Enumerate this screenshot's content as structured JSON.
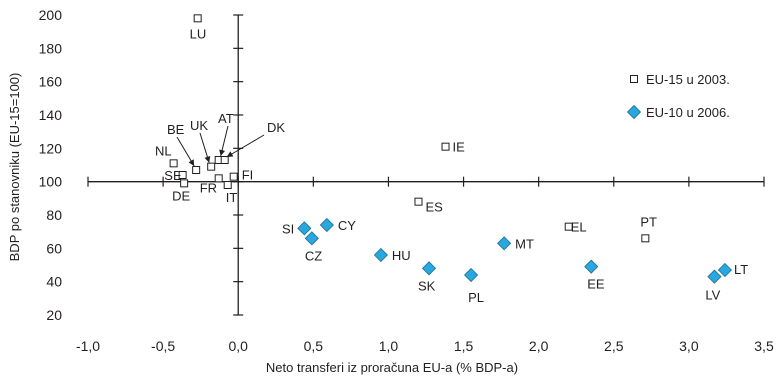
{
  "chart_data": {
    "type": "scatter",
    "xlabel": "Neto transferi iz proračuna EU-a (% BDP-a)",
    "ylabel": "BDP po stanovniku (EU-15=100)",
    "xlim": [
      -1.0,
      3.5
    ],
    "ylim": [
      20,
      200
    ],
    "x_ticks": [
      "-1,0",
      "-0,5",
      "0,0",
      "0,5",
      "1,0",
      "1,5",
      "2,0",
      "2,5",
      "3,0",
      "3,5"
    ],
    "y_ticks": [
      "20",
      "40",
      "60",
      "80",
      "100",
      "120",
      "140",
      "160",
      "180",
      "200"
    ],
    "x_tick_values": [
      -1.0,
      -0.5,
      0.0,
      0.5,
      1.0,
      1.5,
      2.0,
      2.5,
      3.0,
      3.5
    ],
    "y_tick_values": [
      20,
      40,
      60,
      80,
      100,
      120,
      140,
      160,
      180,
      200
    ],
    "axes_cross_at": {
      "x": 0.0,
      "y": 100
    },
    "grid": false,
    "legend_position": "right",
    "series": [
      {
        "name": "EU-15 u 2003.",
        "marker": "square-open",
        "color": "#231f20",
        "points": [
          {
            "label": "LU",
            "x": -0.27,
            "y": 198
          },
          {
            "label": "IE",
            "x": 1.38,
            "y": 121
          },
          {
            "label": "BE",
            "x": -0.28,
            "y": 107
          },
          {
            "label": "UK",
            "x": -0.18,
            "y": 109
          },
          {
            "label": "AT",
            "x": -0.13,
            "y": 113
          },
          {
            "label": "DK",
            "x": -0.09,
            "y": 113
          },
          {
            "label": "NL",
            "x": -0.43,
            "y": 111
          },
          {
            "label": "SE",
            "x": -0.37,
            "y": 104
          },
          {
            "label": "DE",
            "x": -0.36,
            "y": 99
          },
          {
            "label": "FR",
            "x": -0.13,
            "y": 102
          },
          {
            "label": "IT",
            "x": -0.07,
            "y": 98
          },
          {
            "label": "FI",
            "x": -0.03,
            "y": 103
          },
          {
            "label": "ES",
            "x": 1.2,
            "y": 88
          },
          {
            "label": "EL",
            "x": 2.2,
            "y": 73
          },
          {
            "label": "PT",
            "x": 2.71,
            "y": 66
          }
        ]
      },
      {
        "name": "EU-10 u 2006.",
        "marker": "diamond-filled",
        "color": "#29a8df",
        "points": [
          {
            "label": "SI",
            "x": 0.44,
            "y": 72
          },
          {
            "label": "CY",
            "x": 0.59,
            "y": 74
          },
          {
            "label": "CZ",
            "x": 0.49,
            "y": 66
          },
          {
            "label": "HU",
            "x": 0.95,
            "y": 56
          },
          {
            "label": "SK",
            "x": 1.27,
            "y": 48
          },
          {
            "label": "PL",
            "x": 1.55,
            "y": 44
          },
          {
            "label": "MT",
            "x": 1.77,
            "y": 63
          },
          {
            "label": "EE",
            "x": 2.35,
            "y": 49
          },
          {
            "label": "LV",
            "x": 3.17,
            "y": 43
          },
          {
            "label": "LT",
            "x": 3.24,
            "y": 47
          }
        ]
      }
    ]
  }
}
